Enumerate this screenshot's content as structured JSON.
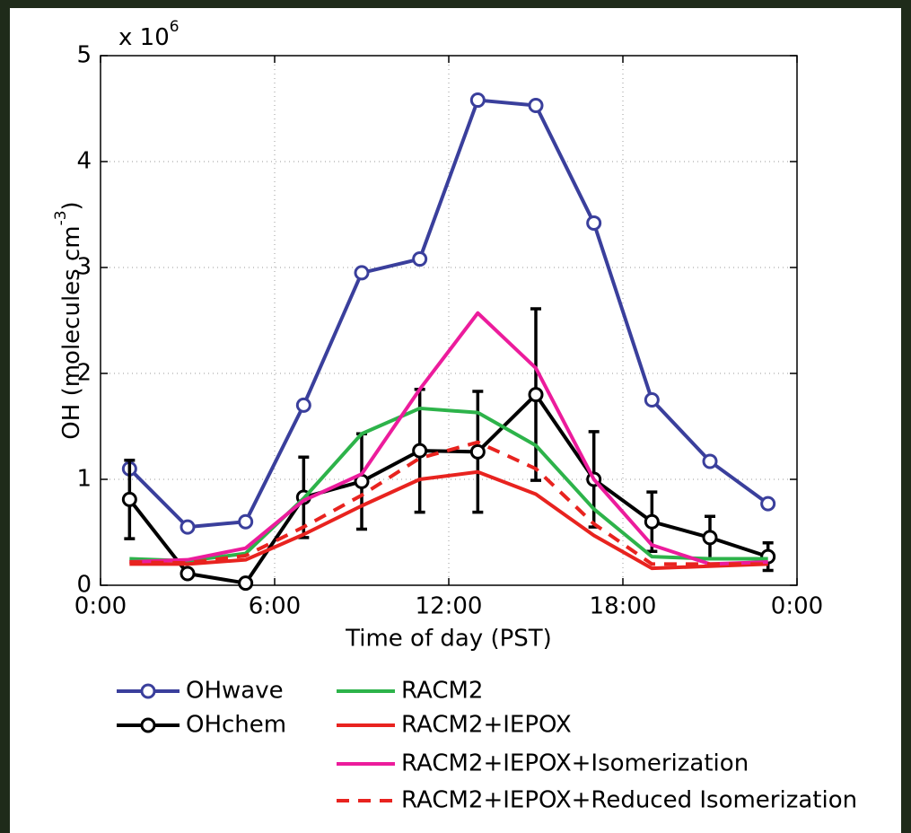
{
  "chart_data": {
    "type": "line",
    "y_multiplier": "x 10",
    "y_multiplier_exp": "6",
    "ylabel": "OH  (molecules cm",
    "ylabel_exp": "-3",
    "ylabel_end": ")",
    "xlabel": "Time of day (PST)",
    "x": [
      1,
      3,
      5,
      7,
      9,
      11,
      13,
      15,
      17,
      19,
      21,
      23
    ],
    "xlim": [
      0,
      24
    ],
    "xticks": [
      {
        "value": 0,
        "label": "0:00"
      },
      {
        "value": 6,
        "label": "6:00"
      },
      {
        "value": 12,
        "label": "12:00"
      },
      {
        "value": 18,
        "label": "18:00"
      },
      {
        "value": 24,
        "label": "0:00"
      }
    ],
    "ylim": [
      0,
      5
    ],
    "yticks": [
      0,
      1,
      2,
      3,
      4,
      5
    ],
    "grid": true,
    "series": [
      {
        "name": "OHwave",
        "color": "#3a3f9c",
        "marker": "circle",
        "values": [
          1.1,
          0.55,
          0.6,
          1.7,
          2.95,
          3.08,
          4.58,
          4.53,
          3.42,
          1.75,
          1.17,
          0.77
        ]
      },
      {
        "name": "OHchem",
        "color": "#000000",
        "marker": "circle",
        "values": [
          0.81,
          0.11,
          0.02,
          0.83,
          0.98,
          1.27,
          1.26,
          1.8,
          1.0,
          0.6,
          0.45,
          0.27
        ],
        "errors": [
          0.37,
          null,
          null,
          0.38,
          0.45,
          0.58,
          0.57,
          0.81,
          0.45,
          0.28,
          0.2,
          0.13
        ]
      },
      {
        "name": "RACM2",
        "color": "#2db34a",
        "values": [
          0.25,
          0.23,
          0.3,
          0.82,
          1.43,
          1.67,
          1.63,
          1.32,
          0.72,
          0.27,
          0.25,
          0.25
        ]
      },
      {
        "name": "RACM2+IEPOX",
        "color": "#e8231f",
        "values": [
          0.2,
          0.2,
          0.24,
          0.48,
          0.75,
          1.0,
          1.07,
          0.86,
          0.47,
          0.16,
          0.18,
          0.2
        ]
      },
      {
        "name": "RACM2+IEPOX+Isomerization",
        "color": "#ec1c9c",
        "values": [
          0.22,
          0.24,
          0.35,
          0.8,
          1.05,
          1.85,
          2.57,
          2.05,
          1.0,
          0.38,
          0.2,
          0.22
        ]
      },
      {
        "name": "RACM2+IEPOX+Reduced Isomerization",
        "color": "#e8231f",
        "dash": true,
        "values": [
          0.22,
          0.21,
          0.28,
          0.55,
          0.85,
          1.2,
          1.35,
          1.1,
          0.58,
          0.2,
          0.2,
          0.2
        ]
      }
    ]
  }
}
